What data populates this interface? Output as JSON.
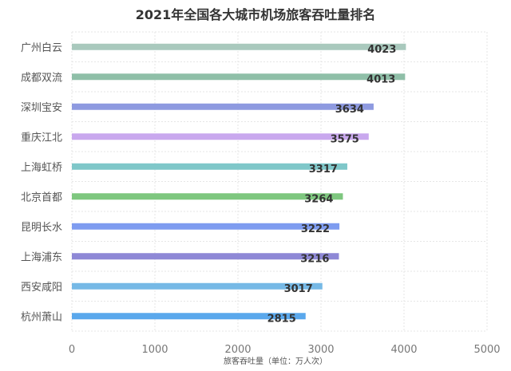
{
  "chart_data": {
    "type": "bar",
    "orientation": "horizontal",
    "title": "2021年全国各大城市机场旅客吞吐量排名",
    "xlabel": "旅客吞吐量（单位：万人次）",
    "ylabel": "",
    "xlim": [
      0,
      5000
    ],
    "xticks": [
      "0",
      "1000",
      "2000",
      "3000",
      "4000",
      "5000"
    ],
    "grid": true,
    "categories": [
      "广州白云",
      "成都双流",
      "深圳宝安",
      "重庆江北",
      "上海虹桥",
      "北京首都",
      "昆明长水",
      "上海浦东",
      "西安咸阳",
      "杭州萧山"
    ],
    "values": [
      4023,
      4013,
      3634,
      3575,
      3317,
      3264,
      3222,
      3216,
      3017,
      2815
    ],
    "value_labels": [
      "4023",
      "4013",
      "3634",
      "3575",
      "3317",
      "3264",
      "3222",
      "3216",
      "3017",
      "2815"
    ],
    "colors": [
      "#a9c9bd",
      "#8fbfa8",
      "#8e9ae0",
      "#c9a8ee",
      "#7fc7c9",
      "#7ec77f",
      "#7e9cf0",
      "#8e88d6",
      "#76b9e6",
      "#5aa8ec"
    ]
  }
}
